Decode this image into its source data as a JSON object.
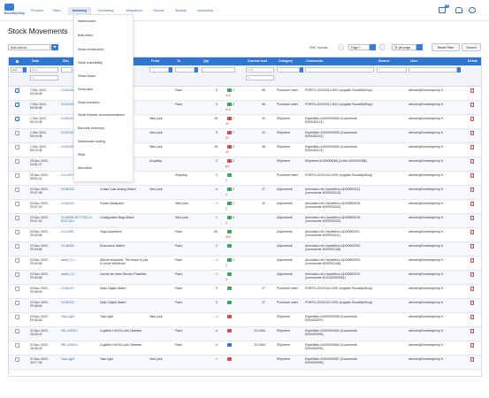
{
  "app": {
    "logo_text": "BoostMyShop"
  },
  "nav": {
    "items": [
      "Products",
      "Sales",
      "Inventory",
      "Purchasing",
      "Integrations",
      "Reports",
      "Wizards",
      "Accounting"
    ],
    "active": "Inventory"
  },
  "top_icons": {
    "badge_count": "38"
  },
  "page_title": "Stock Movements",
  "toolbar": {
    "bulk_actions": "Bulk actions",
    "records": "2997 records",
    "prev": "‹",
    "page": "Page 1",
    "next": "›",
    "per_page": "20 per page",
    "reset_filter": "Reset Filter",
    "search": "Search"
  },
  "inventory_menu": {
    "items": [
      "Warehouses",
      "Bulk editor",
      "Stock movements",
      "Stock traceability",
      "Stock helper",
      "Stock take",
      "Stock transfers",
      "Stock transfer recommendations",
      "Barcode inventory",
      "Warehouse routing",
      "RMA",
      "Allocation"
    ]
  },
  "grid": {
    "columns": [
      "",
      "Date",
      "Sku",
      "Product",
      "From",
      "To",
      "Qty",
      "Current cost",
      "Category",
      "Comments",
      "Source",
      "User",
      "Delete"
    ],
    "filters": {
      "any": "Any",
      "from": "From",
      "to": "To",
      "cost_from": "From",
      "cost_to": "To"
    },
    "rows": [
      {
        "checked": true,
        "date": "7 Dec 2022, 09:39:06",
        "sku": "24-MG04",
        "product": "",
        "from": "",
        "to": "Paris",
        "qty": "5",
        "stock_old": "2",
        "stock_new": "474",
        "dir": "up",
        "cost": "96",
        "category": "Purchase order",
        "comments": "PORFO-20221201-0001 (supplier BoostMyShop)",
        "source": "",
        "user": "abrown@boostmyshop.fr"
      },
      {
        "checked": true,
        "date": "7 Dec 2022, 09:39:06",
        "sku": "24-MG01",
        "product": "",
        "from": "",
        "to": "Paris",
        "qty": "5",
        "stock_old": "2",
        "stock_new": "474",
        "dir": "up",
        "cost": "96",
        "category": "Purchase order",
        "comments": "PORFO-20221201-0001 (supplier BoostMyShop)",
        "source": "",
        "user": "abrown@boostmyshop.fr"
      },
      {
        "checked": true,
        "date": "1 Dec 2022, 09:15:46",
        "sku": "24-MG02",
        "product": "",
        "from": "New york",
        "to": "",
        "qty": "15",
        "stock_old": "7",
        "stock_new": "42",
        "dir": "down",
        "cost": "30",
        "category": "Shipment",
        "comments": "Expédition #1000000069 (Commande #000000101)",
        "source": "",
        "user": "abrown@boostmyshop.fr"
      },
      {
        "checked": false,
        "date": "1 Dec 2022, 09:15:46",
        "sku": "24-MG03",
        "product": "",
        "from": "New york",
        "to": "",
        "qty": "9",
        "stock_old": "7",
        "stock_new": "21",
        "dir": "down",
        "cost": "22",
        "category": "Shipment",
        "comments": "Expédition #1000000069 (Commande #000000101)",
        "source": "",
        "user": "abrown@boostmyshop.fr"
      },
      {
        "checked": false,
        "date": "1 Dec 2022, 09:15:46",
        "sku": "24-MG05",
        "product": "",
        "from": "New york",
        "to": "",
        "qty": "15",
        "stock_old": "4",
        "stock_new": "42",
        "dir": "down",
        "cost": "98",
        "category": "Shipment",
        "comments": "Expédition #1000000069 (Commande #000000101)",
        "source": "",
        "user": "abrown@boostmyshop.fr"
      },
      {
        "checked": false,
        "date": "25 Nov 2022, 04:31:37",
        "sku": "",
        "product": "",
        "from": "Dropship",
        "to": "",
        "qty": "2",
        "stock_old": "2",
        "stock_new": "64",
        "dir": "down",
        "cost": "",
        "category": "Shipment",
        "comments": "Shipment #1000000066 (Order #000000256)",
        "source": "",
        "user": "abrown@boostmyshop.fr"
      },
      {
        "checked": false,
        "date": "25 Nov 2022, 09:57:21",
        "sku": "24-UG07",
        "product": "Solo Power Circuit",
        "from": "",
        "to": "Dropship",
        "qty": "2",
        "stock_old": "",
        "stock_new": "2",
        "dir": "up",
        "cost": "",
        "category": "Purchase order",
        "comments": "PORFO-20221101-0001 (supplier BoostMyShop)",
        "source": "",
        "user": "abrown@boostmyshop.fr"
      },
      {
        "checked": false,
        "date": "23 Nov 2022, 20:07:05",
        "sku": "24-WG02",
        "product": "Cruise Dual Analog Watch",
        "from": "New york",
        "to": "",
        "qty": "4",
        "stock_old": "2",
        "stock_new": "4",
        "dir": "up",
        "cost": "27",
        "category": "Adjustment",
        "comments": "Annulation de l'expédition #1000000013 (commande #000000013)",
        "source": "",
        "user": "abrown@boostmyshop.fr"
      },
      {
        "checked": false,
        "date": "23 Nov 2022, 20:07:02",
        "sku": "24-WG03",
        "product": "Fusion Backpack",
        "from": "",
        "to": "New york",
        "qty": "1",
        "stock_old": "1",
        "stock_new": "2",
        "dir": "up",
        "cost": "12",
        "category": "Adjustment",
        "comments": "Annulation de l'expédition #1000000018 (commande #000000020)",
        "source": "",
        "user": "abrown@boostmyshop.fr"
      },
      {
        "checked": false,
        "date": "23 Nov 2022, 20:07:02",
        "sku": "24-WB04-HOT706-LH-RED-38-1",
        "product": "Configurable Bags-Black",
        "from": "",
        "to": "New york",
        "qty": "1",
        "stock_old": "0",
        "stock_new": "4",
        "dir": "up",
        "cost": "",
        "category": "Adjustment",
        "comments": "Annulation de l'expédition #1000000018 (commande #000000020)",
        "source": "",
        "user": "abrown@boostmyshop.fr"
      },
      {
        "checked": false,
        "date": "23 Nov 2022, 20:03:56",
        "sku": "24-UG05",
        "product": "Yoga Adventure",
        "from": "",
        "to": "Paris",
        "qty": "80",
        "stock_old": "",
        "stock_new": "490",
        "dir": "up",
        "cost": "",
        "category": "Adjustment",
        "comments": "Annulation de l'expédition #1000000011 (commande #000000011)",
        "source": "",
        "user": "abrown@boostmyshop.fr"
      },
      {
        "checked": false,
        "date": "23 Nov 2022, 20:03:56",
        "sku": "24-WB06",
        "product": "Endurance Watch",
        "from": "",
        "to": "Paris",
        "qty": "2",
        "stock_old": "",
        "stock_new": "",
        "dir": "up",
        "cost": "",
        "category": "Adjustment",
        "comments": "Annulation de l'expédition #1000000009 (commande #000000148)",
        "source": "",
        "user": "abrown@boostmyshop.fr"
      },
      {
        "checked": false,
        "date": "23 Nov 2022, 20:03:56",
        "sku": "tablet_0.1",
        "product": "Affiche encadrée: The beach is yet to come Windhose",
        "from": "",
        "to": "Paris",
        "qty": "1",
        "stock_old": "1",
        "stock_new": "2",
        "dir": "up",
        "cost": "",
        "category": "Adjustment",
        "comments": "Annulation de l'expédition #1000000009 (commande #000000148)",
        "source": "",
        "user": "abrown@boostmyshop.fr"
      },
      {
        "checked": false,
        "date": "23 Nov 2022, 20:03:56",
        "sku": "tablet_0.2",
        "product": "Carnet de notes Renard Pastelles",
        "from": "",
        "to": "Paris",
        "qty": "1",
        "stock_old": "",
        "stock_new": "3",
        "dir": "up",
        "cost": "",
        "category": "Adjustment",
        "comments": "Annulation de l'expédition #1000000070 (commande #011000000061)",
        "source": "",
        "user": "abrown@boostmyshop.fr"
      },
      {
        "checked": false,
        "date": "23 Nov 2022, 20:08:54",
        "sku": "24-WG07",
        "product": "Dash Digital Watch",
        "from": "",
        "to": "Paris",
        "qty": "9",
        "stock_old": "",
        "stock_new": "",
        "dir": "up",
        "cost": "47",
        "category": "Purchase order",
        "comments": "PORFO-20221101-0001 (supplier BoostMyShop)",
        "source": "",
        "user": "abrown@boostmyshop.fr"
      },
      {
        "checked": false,
        "date": "23 Nov 2022, 20:08:54",
        "sku": "24-WG02",
        "product": "Dash Digital Watch",
        "from": "",
        "to": "Paris",
        "qty": "5",
        "stock_old": "",
        "stock_new": "",
        "dir": "up",
        "cost": "47",
        "category": "Purchase order",
        "comments": "PORFO-20221101-0001 (supplier BoostMyShop)",
        "source": "",
        "user": "abrown@boostmyshop.fr"
      },
      {
        "checked": false,
        "date": "23 Nov 2022, 09:45:53",
        "sku": "Tata Light",
        "product": "Tata Light",
        "from": "New york",
        "to": "",
        "qty": "1",
        "stock_old": "",
        "stock_new": "",
        "dir": "down",
        "cost": "",
        "category": "Shipment",
        "comments": "Expédition #1000000058 (Commande #000000097)",
        "source": "",
        "user": "abrown@boostmyshop.fr"
      },
      {
        "checked": false,
        "date": "22 Nov 2022, 15:26:22",
        "sku": "981-000014",
        "product": "Logitech HXXXe colo Headset",
        "from": "",
        "to": "Paris",
        "qty": "4",
        "stock_old": "",
        "stock_new": "",
        "dir": "down",
        "cost": "22.0484",
        "category": "Shipment",
        "comments": "Expédition #1000000064 (Commande #000000093)",
        "source": "",
        "user": "abrown@boostmyshop.fr"
      },
      {
        "checked": false,
        "date": "22 Nov 2022, 15:26:22",
        "sku": "981-000014",
        "product": "Logitech HXXXe colo Headset",
        "from": "",
        "to": "Paris",
        "qty": "4",
        "stock_old": "",
        "stock_new": "",
        "dir": "eq",
        "cost": "22.0484",
        "category": "Shipment",
        "comments": "Expédition #1000000064 (Commande #000000093)",
        "source": "",
        "user": "abrown@boostmyshop.fr"
      },
      {
        "checked": false,
        "date": "22 Nov 2022, 16:17:02",
        "sku": "Tata Light",
        "product": "Tata Light",
        "from": "New york",
        "to": "",
        "qty": "1",
        "stock_old": "",
        "stock_new": "",
        "dir": "down",
        "cost": "",
        "category": "Shipment",
        "comments": "Expédition #1000000057 (Commande #000000096)",
        "source": "",
        "user": "abrown@boostmyshop.fr"
      }
    ]
  }
}
